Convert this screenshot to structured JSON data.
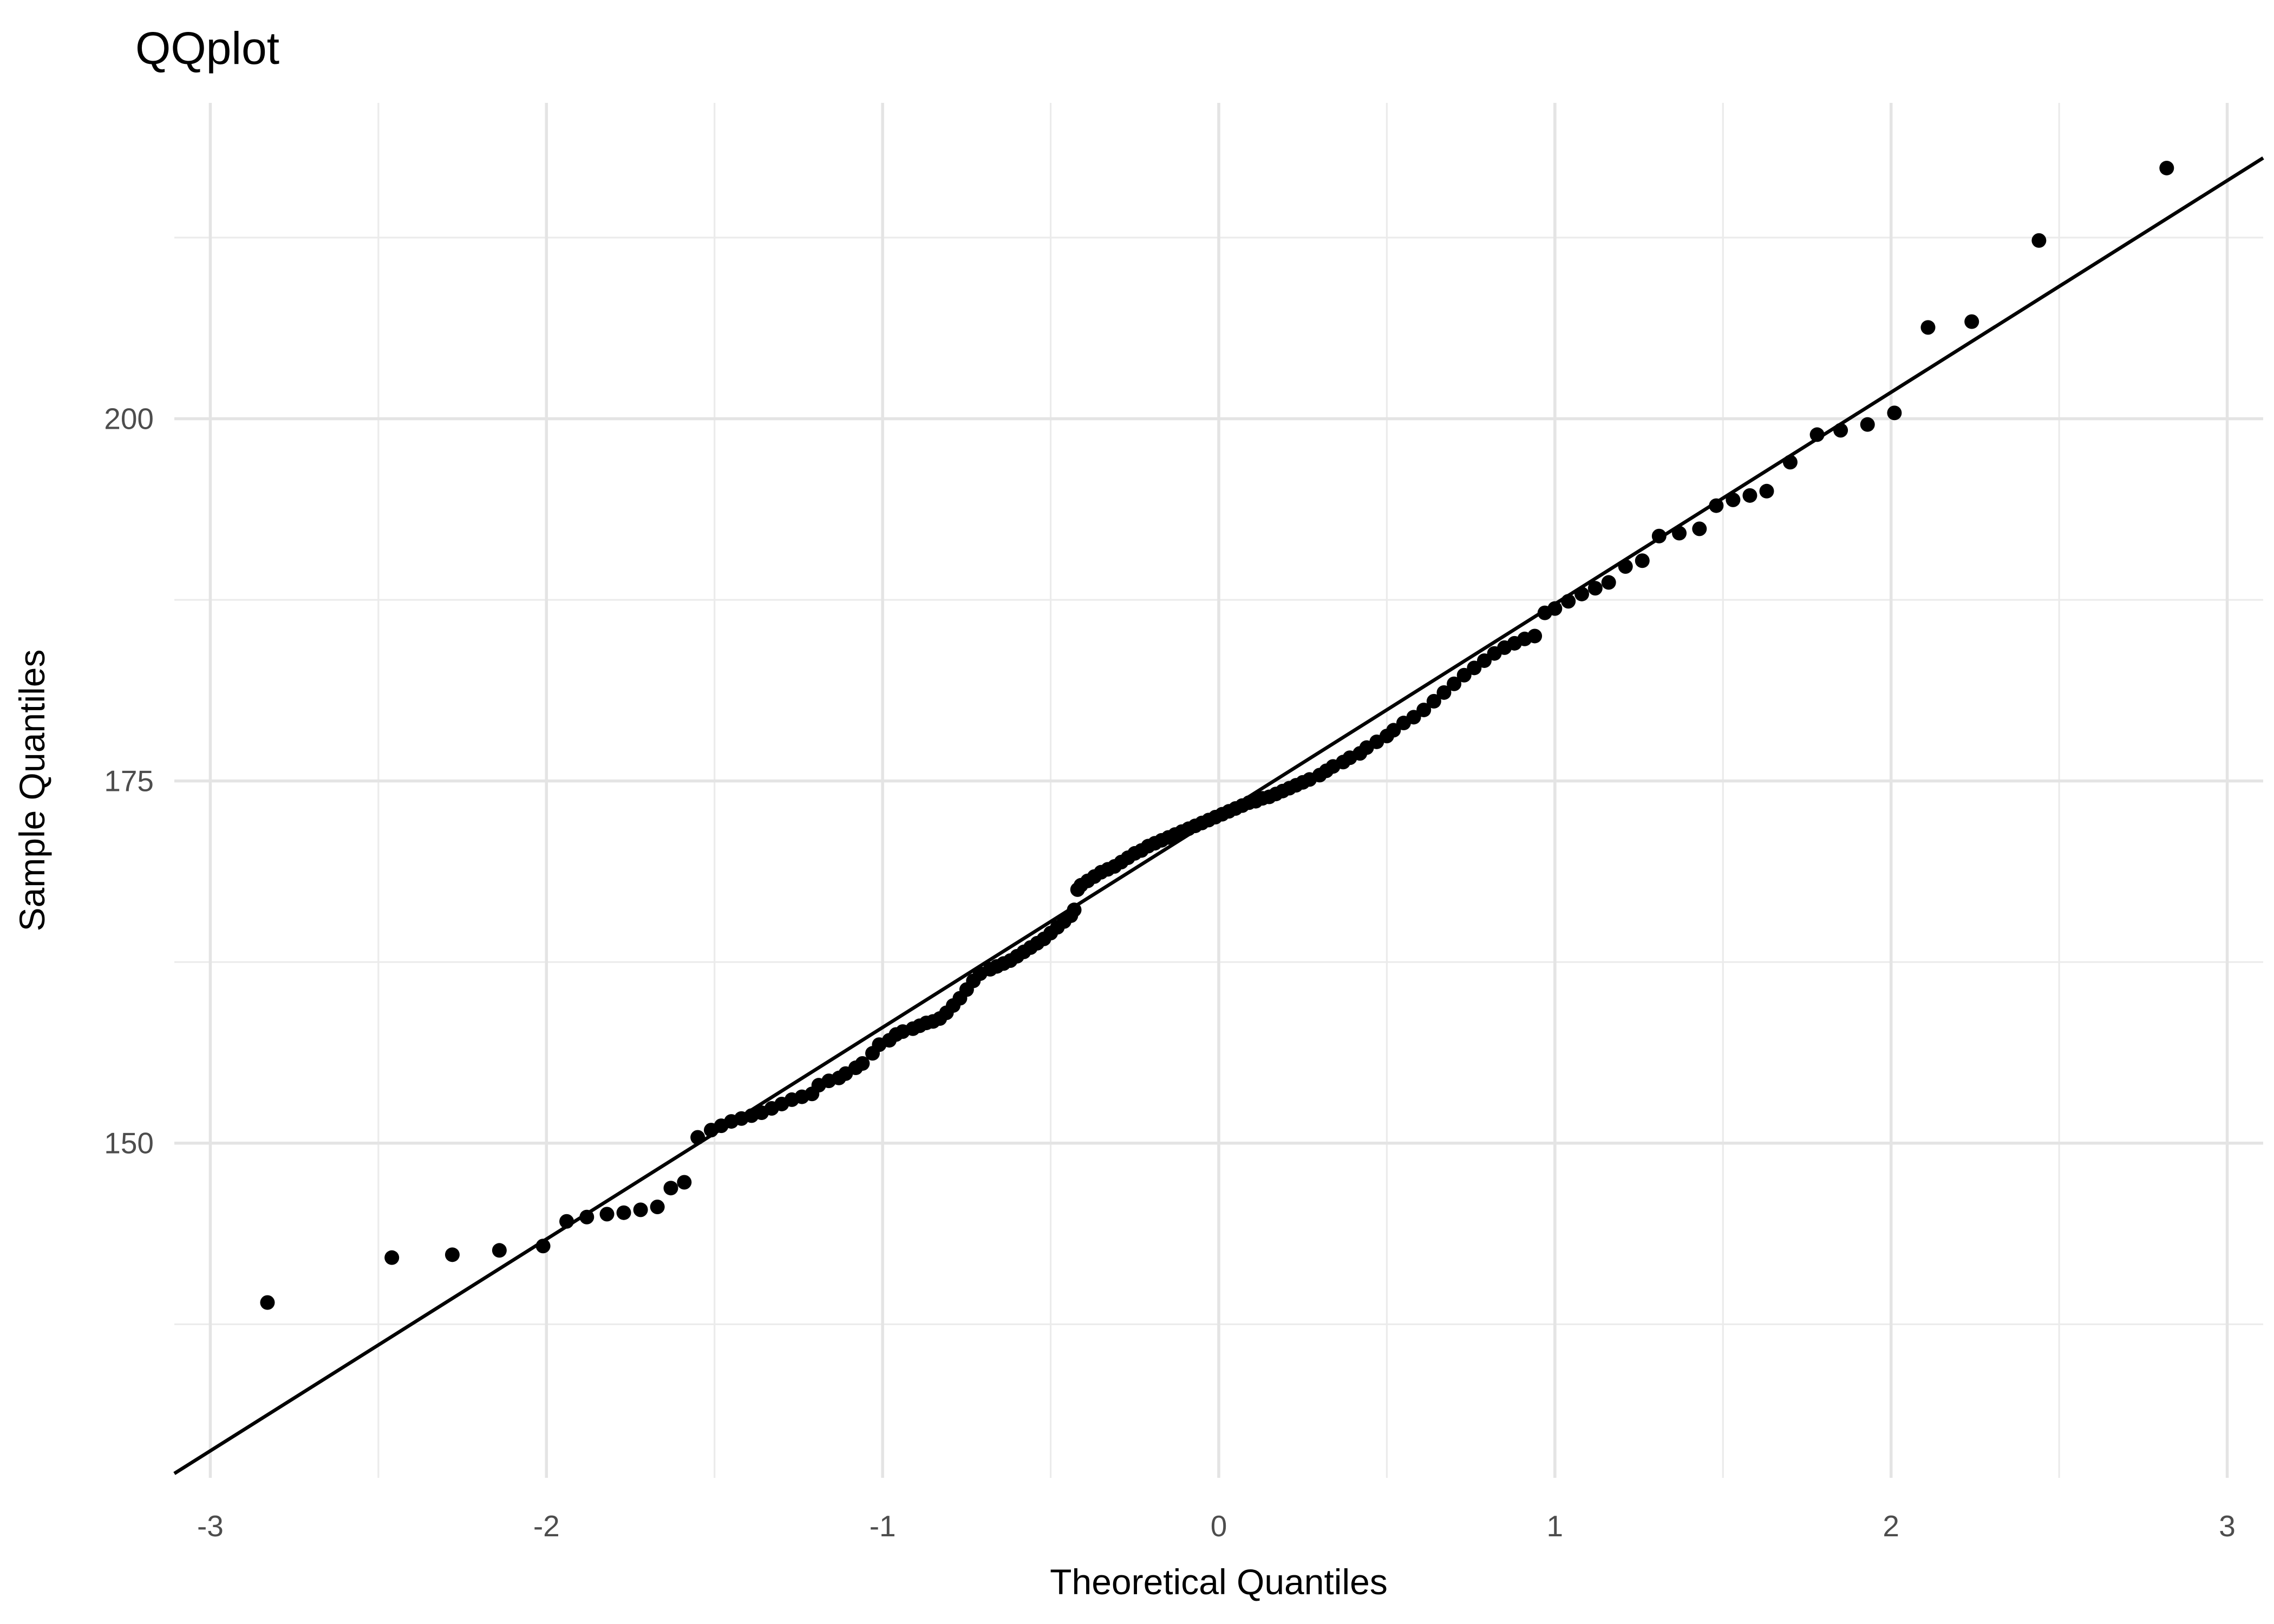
{
  "title": "QQplot",
  "style": {
    "background": "#ffffff",
    "grid_color": "#ebebeb",
    "tick_label_color": "#4d4d4d",
    "text_color": "#000000",
    "point_color": "#000000",
    "reference_line_color": "#000000"
  },
  "chart_data": {
    "type": "scatter",
    "title": "QQplot",
    "xlabel": "Theoretical Quantiles",
    "ylabel": "Sample Quantiles",
    "x_ticks": [
      -3,
      -2,
      -1,
      0,
      1,
      2,
      3
    ],
    "y_ticks": [
      150,
      175,
      200
    ],
    "x_minor_gridlines": [
      -2.5,
      -1.5,
      -0.5,
      0.5,
      1.5,
      2.5
    ],
    "y_minor_gridlines": [
      137.5,
      162.5,
      187.5,
      212.5
    ],
    "xlim": [
      -3.107,
      3.107
    ],
    "ylim": [
      126.9,
      221.8
    ],
    "grid": "major+minor",
    "legend": "none",
    "point_radius_px": 13.5,
    "reference_line": {
      "x1": -3.107,
      "y1": 127.2,
      "x2": 3.107,
      "y2": 218.0
    },
    "points": [
      [
        -2.83,
        139.0
      ],
      [
        -2.46,
        142.1
      ],
      [
        -2.28,
        142.3
      ],
      [
        -2.14,
        142.6
      ],
      [
        -2.01,
        142.9
      ],
      [
        -1.94,
        144.6
      ],
      [
        -1.88,
        144.9
      ],
      [
        -1.82,
        145.1
      ],
      [
        -1.77,
        145.2
      ],
      [
        -1.72,
        145.4
      ],
      [
        -1.67,
        145.6
      ],
      [
        -1.63,
        146.9
      ],
      [
        -1.59,
        147.3
      ],
      [
        -1.55,
        150.4
      ],
      [
        -1.51,
        150.9
      ],
      [
        -1.48,
        151.2
      ],
      [
        -1.45,
        151.5
      ],
      [
        -1.42,
        151.7
      ],
      [
        -1.39,
        151.9
      ],
      [
        -1.36,
        152.1
      ],
      [
        -1.33,
        152.4
      ],
      [
        -1.3,
        152.7
      ],
      [
        -1.27,
        153.0
      ],
      [
        -1.24,
        153.2
      ],
      [
        -1.21,
        153.4
      ],
      [
        -1.19,
        154.0
      ],
      [
        -1.16,
        154.3
      ],
      [
        -1.13,
        154.5
      ],
      [
        -1.11,
        154.8
      ],
      [
        -1.08,
        155.2
      ],
      [
        -1.06,
        155.5
      ],
      [
        -1.03,
        156.2
      ],
      [
        -1.01,
        156.8
      ],
      [
        -0.98,
        157.1
      ],
      [
        -0.96,
        157.5
      ],
      [
        -0.94,
        157.7
      ],
      [
        -0.91,
        157.9
      ],
      [
        -0.89,
        158.1
      ],
      [
        -0.87,
        158.3
      ],
      [
        -0.85,
        158.4
      ],
      [
        -0.83,
        158.6
      ],
      [
        -0.81,
        159.0
      ],
      [
        -0.79,
        159.5
      ],
      [
        -0.77,
        160.0
      ],
      [
        -0.75,
        160.6
      ],
      [
        -0.73,
        161.2
      ],
      [
        -0.71,
        161.7
      ],
      [
        -0.68,
        162.0
      ],
      [
        -0.66,
        162.2
      ],
      [
        -0.64,
        162.4
      ],
      [
        -0.62,
        162.6
      ],
      [
        -0.6,
        162.9
      ],
      [
        -0.58,
        163.2
      ],
      [
        -0.56,
        163.5
      ],
      [
        -0.54,
        163.8
      ],
      [
        -0.52,
        164.1
      ],
      [
        -0.5,
        164.5
      ],
      [
        -0.48,
        164.9
      ],
      [
        -0.46,
        165.3
      ],
      [
        -0.44,
        165.7
      ],
      [
        -0.43,
        166.1
      ],
      [
        -0.42,
        167.5
      ],
      [
        -0.41,
        167.8
      ],
      [
        -0.39,
        168.1
      ],
      [
        -0.37,
        168.4
      ],
      [
        -0.35,
        168.7
      ],
      [
        -0.33,
        168.9
      ],
      [
        -0.31,
        169.1
      ],
      [
        -0.29,
        169.4
      ],
      [
        -0.27,
        169.7
      ],
      [
        -0.25,
        170.0
      ],
      [
        -0.23,
        170.2
      ],
      [
        -0.21,
        170.5
      ],
      [
        -0.19,
        170.7
      ],
      [
        -0.17,
        170.9
      ],
      [
        -0.15,
        171.1
      ],
      [
        -0.13,
        171.3
      ],
      [
        -0.11,
        171.5
      ],
      [
        -0.09,
        171.7
      ],
      [
        -0.07,
        171.9
      ],
      [
        -0.05,
        172.1
      ],
      [
        -0.03,
        172.3
      ],
      [
        -0.01,
        172.5
      ],
      [
        0.01,
        172.7
      ],
      [
        0.03,
        172.9
      ],
      [
        0.05,
        173.1
      ],
      [
        0.07,
        173.3
      ],
      [
        0.09,
        173.5
      ],
      [
        0.11,
        173.6
      ],
      [
        0.13,
        173.8
      ],
      [
        0.15,
        173.9
      ],
      [
        0.17,
        174.1
      ],
      [
        0.19,
        174.3
      ],
      [
        0.21,
        174.5
      ],
      [
        0.23,
        174.7
      ],
      [
        0.25,
        174.9
      ],
      [
        0.27,
        175.1
      ],
      [
        0.3,
        175.4
      ],
      [
        0.32,
        175.7
      ],
      [
        0.34,
        176.0
      ],
      [
        0.37,
        176.3
      ],
      [
        0.39,
        176.6
      ],
      [
        0.42,
        176.9
      ],
      [
        0.44,
        177.3
      ],
      [
        0.47,
        177.7
      ],
      [
        0.5,
        178.1
      ],
      [
        0.52,
        178.5
      ],
      [
        0.55,
        179.0
      ],
      [
        0.58,
        179.4
      ],
      [
        0.61,
        179.9
      ],
      [
        0.64,
        180.5
      ],
      [
        0.67,
        181.1
      ],
      [
        0.7,
        181.7
      ],
      [
        0.73,
        182.3
      ],
      [
        0.76,
        182.8
      ],
      [
        0.79,
        183.3
      ],
      [
        0.82,
        183.8
      ],
      [
        0.85,
        184.2
      ],
      [
        0.88,
        184.5
      ],
      [
        0.91,
        184.8
      ],
      [
        0.94,
        185.0
      ],
      [
        0.97,
        186.6
      ],
      [
        1.0,
        186.9
      ],
      [
        1.04,
        187.4
      ],
      [
        1.08,
        187.9
      ],
      [
        1.12,
        188.3
      ],
      [
        1.16,
        188.7
      ],
      [
        1.21,
        189.8
      ],
      [
        1.26,
        190.2
      ],
      [
        1.31,
        191.9
      ],
      [
        1.37,
        192.1
      ],
      [
        1.43,
        192.4
      ],
      [
        1.48,
        194.0
      ],
      [
        1.53,
        194.4
      ],
      [
        1.58,
        194.7
      ],
      [
        1.63,
        195.0
      ],
      [
        1.7,
        197.0
      ],
      [
        1.78,
        198.9
      ],
      [
        1.85,
        199.2
      ],
      [
        1.93,
        199.6
      ],
      [
        2.01,
        200.4
      ],
      [
        2.11,
        206.3
      ],
      [
        2.24,
        206.7
      ],
      [
        2.44,
        212.3
      ],
      [
        2.82,
        217.3
      ]
    ]
  }
}
